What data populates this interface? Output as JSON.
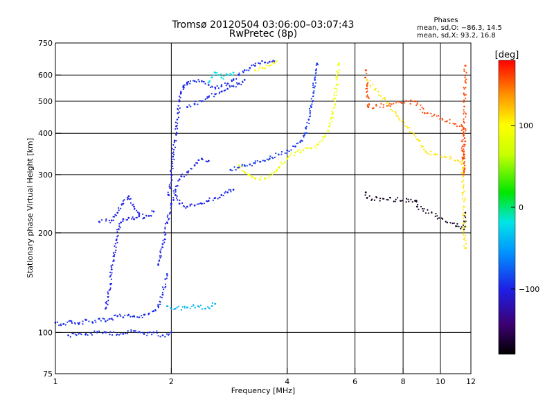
{
  "chart_data": {
    "type": "scatter",
    "title": "Tromsø 20120504 03:06:00–03:07:43",
    "subtitle": "RwPretec (8p)",
    "xlabel": "Frequency [MHz]",
    "ylabel": "Stationary phase Virtual Height [km]",
    "x_scale": "log",
    "y_scale": "log",
    "xlim": [
      1,
      12
    ],
    "ylim": [
      75,
      750
    ],
    "x_ticks": [
      1,
      2,
      4,
      6,
      8,
      10,
      12
    ],
    "x_tick_labels": [
      "1",
      "2",
      "4",
      "6",
      "8",
      "10",
      "12"
    ],
    "x_gridlines": [
      2,
      4,
      6,
      8,
      10
    ],
    "y_ticks": [
      75,
      100,
      200,
      300,
      400,
      500,
      600,
      750
    ],
    "y_tick_labels": [
      "75",
      "100",
      "200",
      "300",
      "400",
      "500",
      "600",
      "750"
    ],
    "y_gridlines": [
      100,
      200,
      300,
      400,
      500,
      600
    ],
    "grid": true,
    "stats": {
      "title": "Phases",
      "line_o": "mean, sd,O: −86.3, 14.5",
      "line_x": "mean, sd,X:  93.2, 16.8"
    },
    "colorbar": {
      "label": "[deg]",
      "min": -180,
      "max": 180,
      "ticks": [
        100,
        0,
        -100
      ],
      "tick_labels": [
        "100",
        "0",
        "−100"
      ],
      "colormap": "rainbow (black-purple-blue-cyan-green-yellow-orange-red)"
    },
    "traces": [
      {
        "phase": -95,
        "points": [
          [
            1.0,
            107
          ],
          [
            1.05,
            106
          ],
          [
            1.1,
            108
          ],
          [
            1.15,
            106
          ],
          [
            1.2,
            109
          ],
          [
            1.25,
            107
          ],
          [
            1.3,
            110
          ],
          [
            1.35,
            108
          ],
          [
            1.4,
            110
          ],
          [
            1.45,
            112
          ],
          [
            1.5,
            111
          ],
          [
            1.55,
            113
          ],
          [
            1.6,
            112
          ],
          [
            1.65,
            111
          ],
          [
            1.7,
            113
          ],
          [
            1.75,
            114
          ],
          [
            1.8,
            116
          ],
          [
            1.85,
            120
          ],
          [
            1.9,
            130
          ],
          [
            1.95,
            150
          ]
        ]
      },
      {
        "phase": -95,
        "points": [
          [
            1.08,
            98
          ],
          [
            1.2,
            99
          ],
          [
            1.35,
            100
          ],
          [
            1.5,
            99
          ],
          [
            1.6,
            101
          ],
          [
            1.7,
            99
          ],
          [
            1.8,
            100
          ],
          [
            1.9,
            98
          ],
          [
            2.0,
            100
          ]
        ]
      },
      {
        "phase": -100,
        "points": [
          [
            1.35,
            118
          ],
          [
            1.37,
            128
          ],
          [
            1.39,
            140
          ],
          [
            1.4,
            155
          ],
          [
            1.42,
            170
          ],
          [
            1.44,
            190
          ],
          [
            1.46,
            205
          ],
          [
            1.48,
            215
          ],
          [
            1.5,
            220
          ],
          [
            1.55,
            222
          ],
          [
            1.6,
            220
          ],
          [
            1.65,
            225
          ]
        ]
      },
      {
        "phase": -100,
        "points": [
          [
            1.3,
            216
          ],
          [
            1.4,
            218
          ],
          [
            1.45,
            230
          ],
          [
            1.5,
            245
          ],
          [
            1.55,
            258
          ],
          [
            1.6,
            240
          ],
          [
            1.65,
            228
          ],
          [
            1.7,
            222
          ],
          [
            1.75,
            225
          ],
          [
            1.8,
            232
          ]
        ]
      },
      {
        "phase": -100,
        "points": [
          [
            1.85,
            160
          ],
          [
            1.9,
            185
          ],
          [
            1.95,
            215
          ],
          [
            2.0,
            245
          ],
          [
            2.05,
            270
          ],
          [
            2.1,
            290
          ],
          [
            2.2,
            305
          ],
          [
            2.3,
            320
          ],
          [
            2.4,
            335
          ],
          [
            2.5,
            330
          ]
        ]
      },
      {
        "phase": -100,
        "points": [
          [
            1.97,
            260
          ],
          [
            2.0,
            300
          ],
          [
            2.02,
            340
          ],
          [
            2.04,
            380
          ],
          [
            2.06,
            420
          ],
          [
            2.08,
            460
          ],
          [
            2.1,
            500
          ],
          [
            2.12,
            530
          ],
          [
            2.15,
            555
          ],
          [
            2.2,
            570
          ]
        ]
      },
      {
        "phase": -100,
        "points": [
          [
            2.05,
            260
          ],
          [
            2.1,
            245
          ],
          [
            2.2,
            240
          ],
          [
            2.3,
            242
          ],
          [
            2.4,
            245
          ],
          [
            2.5,
            250
          ],
          [
            2.6,
            255
          ],
          [
            2.7,
            260
          ],
          [
            2.8,
            265
          ],
          [
            2.9,
            270
          ]
        ]
      },
      {
        "phase": -95,
        "points": [
          [
            2.15,
            550
          ],
          [
            2.2,
            565
          ],
          [
            2.3,
            575
          ],
          [
            2.4,
            575
          ],
          [
            2.5,
            560
          ],
          [
            2.6,
            550
          ],
          [
            2.7,
            555
          ],
          [
            2.8,
            565
          ],
          [
            2.9,
            580
          ],
          [
            3.0,
            600
          ],
          [
            3.1,
            620
          ],
          [
            3.2,
            630
          ],
          [
            3.3,
            640
          ],
          [
            3.4,
            650
          ],
          [
            3.5,
            655
          ],
          [
            3.6,
            658
          ],
          [
            3.7,
            660
          ]
        ]
      },
      {
        "phase": -95,
        "points": [
          [
            2.2,
            480
          ],
          [
            2.3,
            490
          ],
          [
            2.4,
            500
          ],
          [
            2.5,
            515
          ],
          [
            2.6,
            525
          ],
          [
            2.7,
            535
          ],
          [
            2.8,
            545
          ],
          [
            2.9,
            555
          ],
          [
            3.0,
            565
          ],
          [
            3.1,
            580
          ]
        ]
      },
      {
        "phase": -90,
        "points": [
          [
            2.85,
            310
          ],
          [
            3.0,
            315
          ],
          [
            3.1,
            320
          ],
          [
            3.2,
            322
          ],
          [
            3.3,
            325
          ],
          [
            3.4,
            328
          ],
          [
            3.5,
            330
          ],
          [
            3.6,
            335
          ],
          [
            3.8,
            345
          ],
          [
            4.0,
            355
          ],
          [
            4.2,
            365
          ],
          [
            4.35,
            380
          ],
          [
            4.45,
            400
          ],
          [
            4.55,
            440
          ],
          [
            4.62,
            480
          ],
          [
            4.68,
            530
          ],
          [
            4.72,
            580
          ],
          [
            4.75,
            620
          ],
          [
            4.78,
            650
          ]
        ]
      },
      {
        "phase": 90,
        "points": [
          [
            3.0,
            320
          ],
          [
            3.1,
            305
          ],
          [
            3.2,
            298
          ],
          [
            3.3,
            292
          ],
          [
            3.4,
            290
          ],
          [
            3.5,
            292
          ],
          [
            3.6,
            298
          ],
          [
            3.7,
            305
          ],
          [
            3.8,
            315
          ],
          [
            4.0,
            335
          ],
          [
            4.2,
            350
          ],
          [
            4.4,
            355
          ],
          [
            4.6,
            360
          ],
          [
            4.8,
            370
          ],
          [
            5.0,
            390
          ],
          [
            5.15,
            420
          ],
          [
            5.25,
            460
          ],
          [
            5.32,
            510
          ],
          [
            5.38,
            560
          ],
          [
            5.42,
            610
          ],
          [
            5.45,
            650
          ]
        ]
      },
      {
        "phase": 100,
        "points": [
          [
            3.3,
            620
          ],
          [
            3.45,
            630
          ],
          [
            3.6,
            640
          ],
          [
            3.7,
            650
          ],
          [
            3.75,
            660
          ]
        ]
      },
      {
        "phase": -20,
        "points": [
          [
            2.5,
            570
          ],
          [
            2.55,
            590
          ],
          [
            2.6,
            610
          ],
          [
            2.65,
            600
          ],
          [
            2.7,
            590
          ],
          [
            2.8,
            600
          ],
          [
            2.9,
            610
          ]
        ]
      },
      {
        "phase": -40,
        "points": [
          [
            1.95,
            120
          ],
          [
            2.05,
            118
          ],
          [
            2.2,
            119
          ],
          [
            2.35,
            120
          ],
          [
            2.45,
            118
          ],
          [
            2.55,
            120
          ],
          [
            2.6,
            122
          ]
        ]
      },
      {
        "phase": 160,
        "points": [
          [
            6.4,
            620
          ],
          [
            6.45,
            560
          ],
          [
            6.5,
            480
          ],
          [
            8.6,
            500
          ],
          [
            9.1,
            460
          ],
          [
            11.4,
            420
          ],
          [
            11.5,
            300
          ],
          [
            11.6,
            640
          ]
        ]
      },
      {
        "phase": -170,
        "points": [
          [
            6.4,
            265
          ],
          [
            6.45,
            255
          ],
          [
            8.6,
            250
          ],
          [
            8.7,
            240
          ],
          [
            11.5,
            205
          ],
          [
            11.6,
            230
          ]
        ]
      },
      {
        "phase": 110,
        "points": [
          [
            6.45,
            580
          ],
          [
            8.8,
            380
          ],
          [
            9.2,
            350
          ],
          [
            11.4,
            330
          ],
          [
            11.6,
            180
          ]
        ]
      }
    ]
  }
}
